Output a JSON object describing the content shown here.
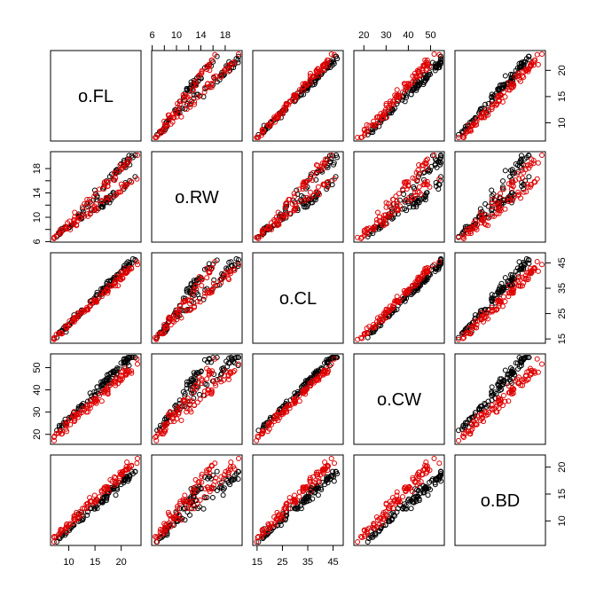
{
  "chart_data": {
    "type": "scatter",
    "title": "",
    "variables": [
      "o.FL",
      "o.RW",
      "o.CL",
      "o.CW",
      "o.BD"
    ],
    "ranges": [
      [
        7.2,
        23.1
      ],
      [
        6.5,
        20.2
      ],
      [
        14.7,
        47.6
      ],
      [
        17.1,
        54.6
      ],
      [
        6.1,
        21.6
      ]
    ],
    "ticks": [
      [
        10,
        15,
        20
      ],
      [
        6,
        8,
        10,
        12,
        14,
        16,
        18
      ],
      [
        15,
        25,
        35,
        45
      ],
      [
        20,
        30,
        40,
        50
      ],
      [
        10,
        15,
        20
      ]
    ],
    "tick_labels": [
      [
        "10",
        "15",
        "20"
      ],
      [
        "6",
        "10",
        "14",
        "18"
      ],
      [
        "15",
        "25",
        "35",
        "45"
      ],
      [
        "20",
        "30",
        "40",
        "50"
      ],
      [
        "10",
        "15",
        "20"
      ]
    ],
    "axis_sides": {
      "top": [
        1,
        3
      ],
      "bottom": [
        0,
        2
      ],
      "left": [
        1,
        3
      ],
      "right": [
        0,
        2,
        4
      ]
    },
    "groups": [
      {
        "name": "",
        "color": "#000000"
      },
      {
        "name": "",
        "color": "#DF0000"
      }
    ],
    "grid": false,
    "legend": "none"
  }
}
